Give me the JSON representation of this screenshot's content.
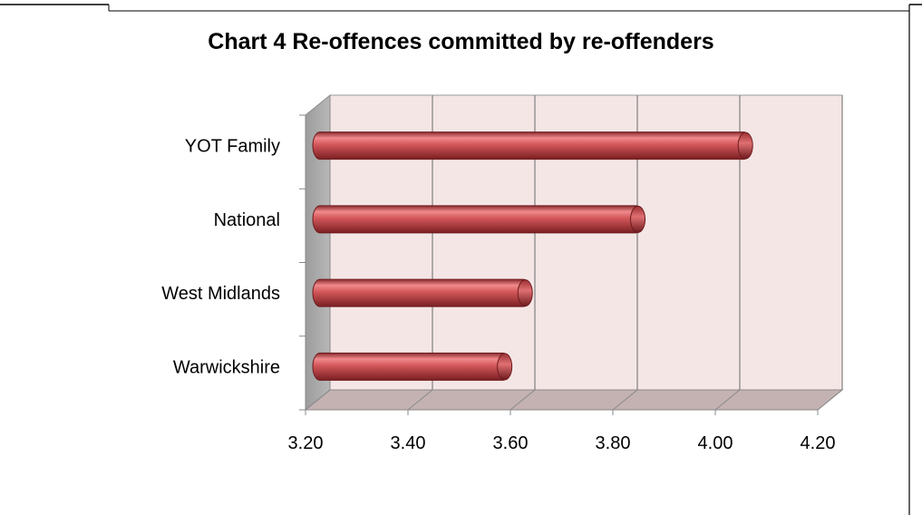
{
  "chart_data": {
    "type": "bar",
    "orientation": "horizontal",
    "title": "Chart 4  Re-offences committed by re-offenders",
    "categories": [
      "YOT Family",
      "National",
      "West Midlands",
      "Warwickshire"
    ],
    "series": [
      {
        "values": [
          4.08,
          3.87,
          3.65,
          3.61
        ]
      }
    ],
    "x_ticks": [
      "3.20",
      "3.40",
      "3.60",
      "3.80",
      "4.00",
      "4.20"
    ],
    "xlim": [
      3.2,
      4.2
    ],
    "xlabel": "",
    "ylabel": "",
    "grid": true,
    "style": "3d-cylinder",
    "colors": {
      "bar": "#c0474b",
      "bar_highlight": "#f08a8c",
      "bar_shadow": "#7a1f22",
      "back_wall": "#f5e6e6",
      "side_wall": "#a8a8a8",
      "floor": "#c4b2b2",
      "gridline": "#808080"
    }
  }
}
